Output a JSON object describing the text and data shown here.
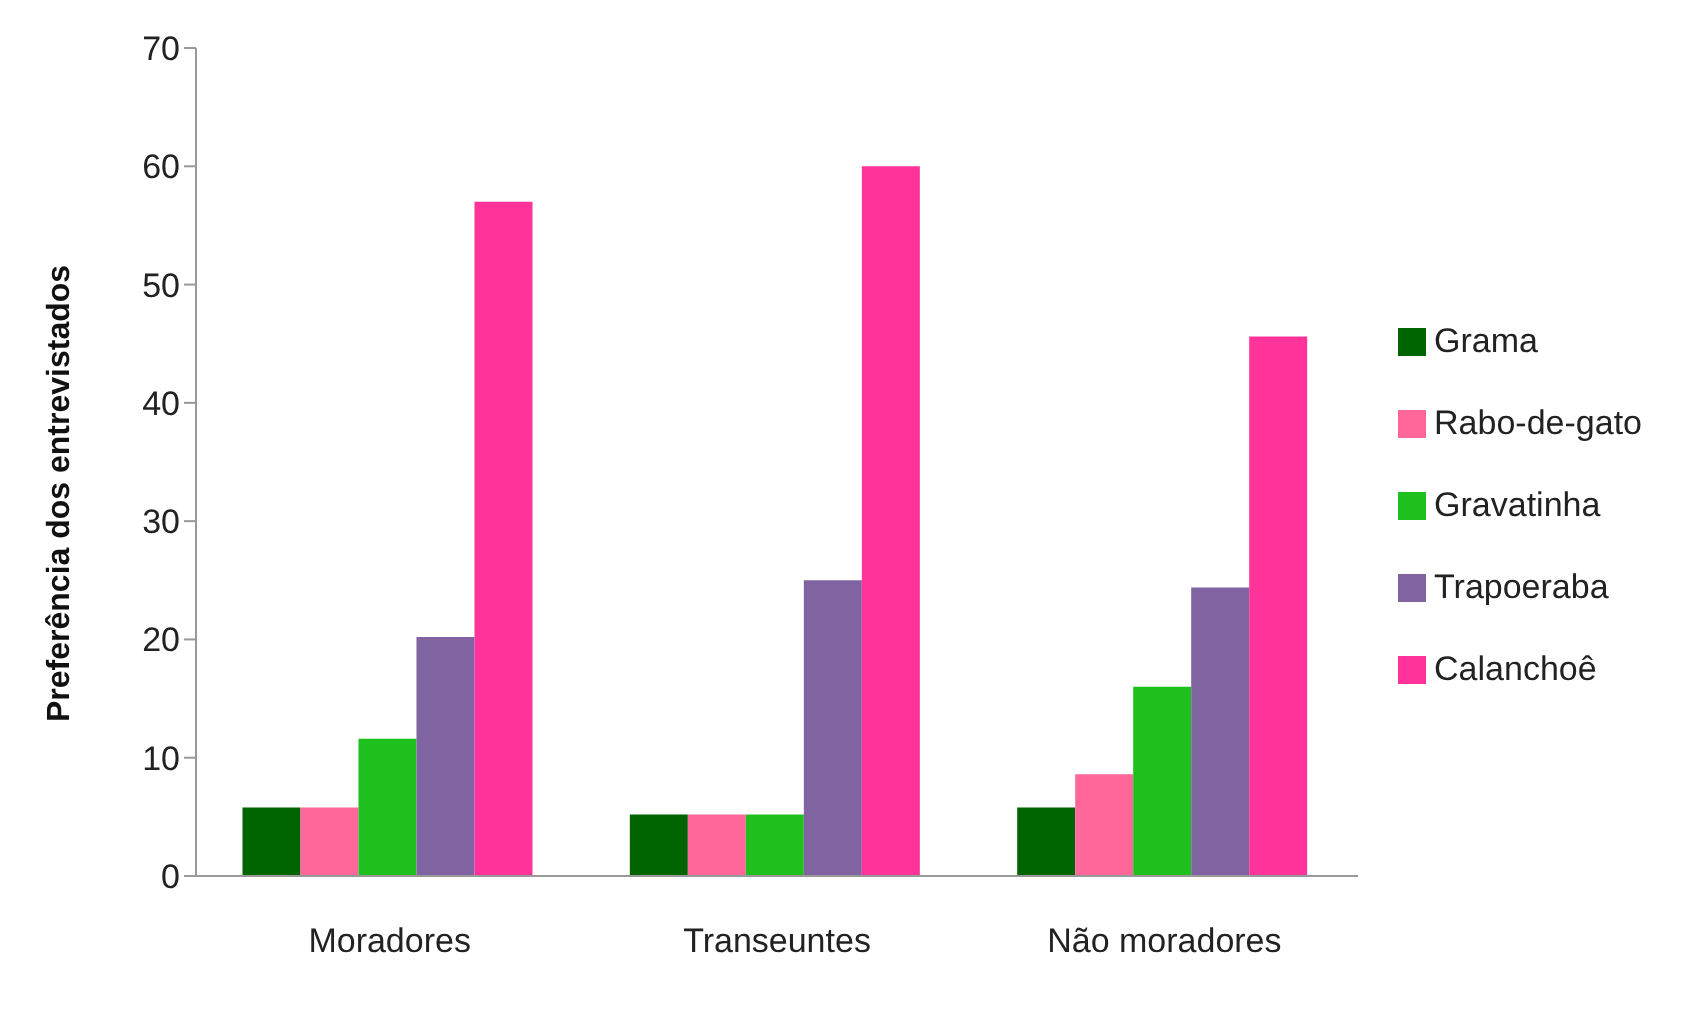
{
  "chart_data": {
    "type": "bar",
    "ylabel": "Preferência dos entrevistados",
    "categories": [
      "Moradores",
      "Transeuntes",
      "Não moradores"
    ],
    "series": [
      {
        "name": "Grama",
        "color": "#006400",
        "values": [
          5.8,
          5.2,
          5.8
        ]
      },
      {
        "name": "Rabo-de-gato",
        "color": "#ff6699",
        "values": [
          5.8,
          5.2,
          8.6
        ]
      },
      {
        "name": "Gravatinha",
        "color": "#1ec01e",
        "values": [
          11.6,
          5.2,
          16
        ]
      },
      {
        "name": "Trapoeraba",
        "color": "#8064a2",
        "values": [
          20.2,
          25,
          24.4
        ]
      },
      {
        "name": "Calanchoê",
        "color": "#ff3399",
        "values": [
          57,
          60,
          45.6
        ]
      }
    ],
    "ylim": [
      0,
      70
    ],
    "yticks": [
      0,
      10,
      20,
      30,
      40,
      50,
      60,
      70
    ],
    "grid": false,
    "legend": "right"
  }
}
